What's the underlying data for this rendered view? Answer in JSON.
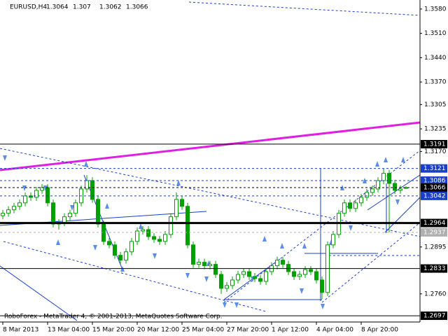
{
  "chart_data": {
    "type": "candlestick",
    "symbol": "EURUSD,H4",
    "credit": "RoboForex - MetaTrader 4, © 2001-2013, MetaQuotes Software Corp.",
    "color": "#00a000",
    "categories": [
      "8 Mar 2013",
      null,
      null,
      null,
      null,
      null,
      null,
      null,
      "13 Mar 04:00",
      null,
      null,
      null,
      null,
      null,
      null,
      null,
      "15 Mar 20:00",
      null,
      null,
      null,
      null,
      null,
      null,
      null,
      "20 Mar 12:00",
      null,
      null,
      null,
      null,
      null,
      null,
      null,
      "25 Mar 04:00",
      null,
      null,
      null,
      null,
      null,
      null,
      null,
      "27 Mar 20:00",
      null,
      null,
      null,
      null,
      null,
      null,
      null,
      "1 Apr 12:00",
      null,
      null,
      null,
      null,
      null,
      null,
      null,
      "4 Apr 04:00",
      null,
      null,
      null,
      null,
      null,
      null,
      null,
      "8 Apr 20:00",
      null,
      null,
      null,
      null,
      null,
      null,
      null,
      null
    ],
    "open": [
      1.2985,
      1.2992,
      1.3002,
      1.3012,
      1.3022,
      1.3042,
      1.3038,
      1.3058,
      1.3066,
      1.3022,
      1.2961,
      1.2965,
      1.2982,
      1.2992,
      1.3022,
      1.3062,
      1.3086,
      1.3032,
      1.2961,
      1.2911,
      1.2901,
      1.2871,
      1.2857,
      1.2881,
      1.2911,
      1.2941,
      1.2945,
      1.2925,
      1.2917,
      1.2911,
      1.2931,
      1.2982,
      1.3032,
      1.3012,
      1.2901,
      1.2845,
      1.2851,
      1.2841,
      1.2845,
      1.2816,
      1.2776,
      1.2784,
      1.28,
      1.2816,
      1.2824,
      1.281,
      1.2804,
      1.2796,
      1.2824,
      1.2841,
      1.2857,
      1.2845,
      1.2824,
      1.281,
      1.2816,
      1.283,
      1.2824,
      1.28,
      1.2764,
      1.2901,
      1.2931,
      1.2992,
      1.3022,
      1.3006,
      1.3022,
      1.3038,
      1.3052,
      1.3062,
      1.3086,
      1.3107,
      1.3078,
      1.3058,
      1.3064
    ],
    "high": [
      1.3002,
      1.3012,
      1.3022,
      1.3032,
      1.3052,
      1.3052,
      1.3068,
      1.3076,
      1.3076,
      1.3032,
      1.2975,
      1.2992,
      1.3002,
      1.3032,
      1.3072,
      1.3102,
      1.3096,
      1.3042,
      1.2971,
      1.2921,
      1.2911,
      1.2881,
      1.2891,
      1.2921,
      1.2951,
      1.2955,
      1.2955,
      1.2935,
      1.2927,
      1.2941,
      1.2992,
      1.3052,
      1.3042,
      1.3022,
      1.2911,
      1.2861,
      1.2861,
      1.2855,
      1.2855,
      1.2826,
      1.2794,
      1.281,
      1.2826,
      1.2834,
      1.2834,
      1.282,
      1.2814,
      1.2834,
      1.2851,
      1.2867,
      1.2867,
      1.2855,
      1.2834,
      1.2826,
      1.284,
      1.284,
      1.2834,
      1.281,
      1.2911,
      1.2941,
      1.3002,
      1.3032,
      1.3032,
      1.3032,
      1.3048,
      1.3062,
      1.3072,
      1.3096,
      1.3121,
      1.3117,
      1.3088,
      1.3072,
      1.307
    ],
    "low": [
      1.2975,
      1.2982,
      1.2992,
      1.3002,
      1.3012,
      1.3028,
      1.3028,
      1.3048,
      1.3012,
      1.2951,
      1.2945,
      1.2955,
      1.2972,
      1.2982,
      1.3012,
      1.3052,
      1.3022,
      1.2951,
      1.2901,
      1.2891,
      1.2861,
      1.2847,
      1.2847,
      1.2871,
      1.2901,
      1.2931,
      1.2915,
      1.2907,
      1.2901,
      1.2901,
      1.2921,
      1.2972,
      1.3002,
      1.2891,
      1.2835,
      1.2835,
      1.2831,
      1.2831,
      1.2806,
      1.276,
      1.2766,
      1.2774,
      1.279,
      1.2806,
      1.28,
      1.2794,
      1.2786,
      1.2786,
      1.2814,
      1.2831,
      1.2835,
      1.2814,
      1.28,
      1.28,
      1.2806,
      1.2814,
      1.279,
      1.2745,
      1.2754,
      1.2891,
      1.2921,
      1.2982,
      1.2996,
      1.2996,
      1.3012,
      1.3028,
      1.3042,
      1.3052,
      1.3076,
      1.2937,
      1.3048,
      1.3048,
      1.3062
    ],
    "close": [
      1.2992,
      1.3002,
      1.3012,
      1.3022,
      1.3042,
      1.3038,
      1.3058,
      1.3066,
      1.3022,
      1.2961,
      1.2965,
      1.2982,
      1.2992,
      1.3022,
      1.3062,
      1.3086,
      1.3032,
      1.2961,
      1.2911,
      1.2901,
      1.2871,
      1.2857,
      1.2881,
      1.2911,
      1.2941,
      1.2945,
      1.2925,
      1.2917,
      1.2911,
      1.2931,
      1.2982,
      1.3032,
      1.3012,
      1.2901,
      1.2845,
      1.2851,
      1.2841,
      1.2845,
      1.2816,
      1.2776,
      1.2784,
      1.28,
      1.2816,
      1.2824,
      1.281,
      1.2804,
      1.2796,
      1.2824,
      1.2841,
      1.2857,
      1.2845,
      1.2824,
      1.281,
      1.2816,
      1.283,
      1.2824,
      1.28,
      1.2764,
      1.2901,
      1.2931,
      1.2992,
      1.3022,
      1.3006,
      1.3022,
      1.3038,
      1.3052,
      1.3062,
      1.3086,
      1.3107,
      1.3078,
      1.3058,
      1.3062,
      1.3066
    ],
    "ylim": [
      1.2679,
      1.3606
    ],
    "yticks": [
      {
        "value": 1.358,
        "label": "1.3580"
      },
      {
        "value": 1.351,
        "label": "1.3510"
      },
      {
        "value": 1.344,
        "label": "1.3440"
      },
      {
        "value": 1.337,
        "label": "1.3370"
      },
      1.3305,
      1.3235,
      {
        "value": 1.317,
        "label": "1.3170"
      },
      1.2895,
      {
        "value": 1.276,
        "label": "1.2760"
      }
    ],
    "levels": [
      {
        "value": 1.3191,
        "color": "#000000",
        "style": "solid"
      },
      {
        "value": 1.3121,
        "color": "#1a3ec8",
        "style": "dashed"
      },
      {
        "value": 1.3086,
        "color": "#1a3ec8",
        "style": "dashed"
      },
      {
        "value": 1.3066,
        "color": "#000000",
        "style": "dashed"
      },
      {
        "value": 1.3042,
        "color": "#1a3ec8",
        "style": "dashed"
      },
      {
        "value": 1.2964,
        "color": "#000000",
        "style": "thick"
      },
      {
        "value": 1.2937,
        "color": "#b0b0b0",
        "style": "dashed"
      },
      {
        "value": 1.2833,
        "color": "#000000",
        "style": "solid"
      },
      {
        "value": 1.2697,
        "color": "#000000",
        "style": "solid"
      }
    ]
  }
}
